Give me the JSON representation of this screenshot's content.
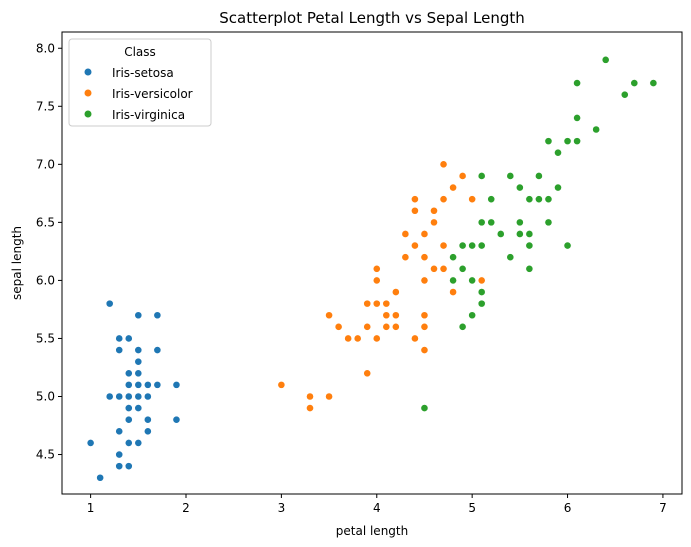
{
  "chart_data": {
    "type": "scatter",
    "title": "Scatterplot Petal Length vs Sepal Length",
    "xlabel": "petal length",
    "ylabel": "sepal length",
    "xlim": [
      0.7,
      7.2
    ],
    "ylim": [
      4.16,
      8.14
    ],
    "xticks": [
      1,
      2,
      3,
      4,
      5,
      6,
      7
    ],
    "yticks": [
      4.5,
      5.0,
      5.5,
      6.0,
      6.5,
      7.0,
      7.5,
      8.0
    ],
    "ytick_labels": [
      "4.5",
      "5.0",
      "5.5",
      "6.0",
      "6.5",
      "7.0",
      "7.5",
      "8.0"
    ],
    "grid": false,
    "legend": {
      "title": "Class",
      "position": "top-left"
    },
    "series": [
      {
        "name": "Iris-setosa",
        "color": "#1f77b4",
        "points": [
          [
            1.4,
            5.1
          ],
          [
            1.4,
            4.9
          ],
          [
            1.3,
            4.7
          ],
          [
            1.5,
            4.6
          ],
          [
            1.4,
            5.0
          ],
          [
            1.7,
            5.4
          ],
          [
            1.4,
            4.6
          ],
          [
            1.5,
            5.0
          ],
          [
            1.4,
            4.4
          ],
          [
            1.5,
            4.9
          ],
          [
            1.5,
            5.4
          ],
          [
            1.6,
            4.8
          ],
          [
            1.4,
            4.8
          ],
          [
            1.1,
            4.3
          ],
          [
            1.2,
            5.8
          ],
          [
            1.5,
            5.7
          ],
          [
            1.3,
            5.4
          ],
          [
            1.4,
            5.1
          ],
          [
            1.7,
            5.7
          ],
          [
            1.5,
            5.1
          ],
          [
            1.7,
            5.4
          ],
          [
            1.5,
            5.1
          ],
          [
            1.0,
            4.6
          ],
          [
            1.7,
            5.1
          ],
          [
            1.9,
            4.8
          ],
          [
            1.6,
            5.0
          ],
          [
            1.6,
            5.0
          ],
          [
            1.5,
            5.2
          ],
          [
            1.4,
            5.2
          ],
          [
            1.6,
            4.7
          ],
          [
            1.6,
            4.8
          ],
          [
            1.5,
            5.4
          ],
          [
            1.5,
            5.2
          ],
          [
            1.4,
            5.5
          ],
          [
            1.5,
            4.9
          ],
          [
            1.2,
            5.0
          ],
          [
            1.3,
            5.5
          ],
          [
            1.4,
            4.9
          ],
          [
            1.3,
            4.4
          ],
          [
            1.5,
            5.1
          ],
          [
            1.3,
            5.0
          ],
          [
            1.3,
            4.5
          ],
          [
            1.3,
            4.4
          ],
          [
            1.6,
            5.0
          ],
          [
            1.9,
            5.1
          ],
          [
            1.4,
            4.8
          ],
          [
            1.6,
            5.1
          ],
          [
            1.4,
            4.6
          ],
          [
            1.5,
            5.3
          ],
          [
            1.4,
            5.0
          ]
        ]
      },
      {
        "name": "Iris-versicolor",
        "color": "#ff7f0e",
        "points": [
          [
            4.7,
            7.0
          ],
          [
            4.5,
            6.4
          ],
          [
            4.9,
            6.9
          ],
          [
            4.0,
            5.5
          ],
          [
            4.6,
            6.5
          ],
          [
            4.5,
            5.7
          ],
          [
            4.7,
            6.3
          ],
          [
            3.3,
            4.9
          ],
          [
            4.6,
            6.6
          ],
          [
            3.9,
            5.2
          ],
          [
            3.5,
            5.0
          ],
          [
            4.2,
            5.9
          ],
          [
            4.0,
            6.0
          ],
          [
            4.7,
            6.1
          ],
          [
            3.6,
            5.6
          ],
          [
            4.4,
            6.7
          ],
          [
            4.5,
            5.6
          ],
          [
            4.1,
            5.8
          ],
          [
            4.5,
            6.2
          ],
          [
            3.9,
            5.6
          ],
          [
            4.8,
            5.9
          ],
          [
            4.0,
            6.1
          ],
          [
            4.9,
            6.3
          ],
          [
            4.7,
            6.1
          ],
          [
            4.3,
            6.4
          ],
          [
            4.4,
            6.6
          ],
          [
            4.8,
            6.8
          ],
          [
            5.0,
            6.7
          ],
          [
            4.5,
            6.0
          ],
          [
            3.5,
            5.7
          ],
          [
            3.8,
            5.5
          ],
          [
            3.7,
            5.5
          ],
          [
            3.9,
            5.8
          ],
          [
            5.1,
            6.0
          ],
          [
            4.5,
            5.4
          ],
          [
            4.5,
            6.0
          ],
          [
            4.7,
            6.7
          ],
          [
            4.4,
            6.3
          ],
          [
            4.1,
            5.6
          ],
          [
            4.0,
            5.5
          ],
          [
            4.4,
            5.5
          ],
          [
            4.6,
            6.1
          ],
          [
            4.0,
            5.8
          ],
          [
            3.3,
            5.0
          ],
          [
            4.2,
            5.6
          ],
          [
            4.2,
            5.7
          ],
          [
            4.2,
            5.7
          ],
          [
            4.3,
            6.2
          ],
          [
            3.0,
            5.1
          ],
          [
            4.1,
            5.7
          ]
        ]
      },
      {
        "name": "Iris-virginica",
        "color": "#2ca02c",
        "points": [
          [
            6.0,
            6.3
          ],
          [
            5.1,
            5.8
          ],
          [
            5.9,
            7.1
          ],
          [
            5.6,
            6.3
          ],
          [
            5.8,
            6.5
          ],
          [
            6.6,
            7.6
          ],
          [
            4.5,
            4.9
          ],
          [
            6.3,
            7.3
          ],
          [
            5.8,
            6.7
          ],
          [
            6.1,
            7.2
          ],
          [
            5.1,
            6.5
          ],
          [
            5.3,
            6.4
          ],
          [
            5.5,
            6.8
          ],
          [
            5.0,
            5.7
          ],
          [
            5.1,
            5.8
          ],
          [
            5.3,
            6.4
          ],
          [
            5.5,
            6.5
          ],
          [
            6.7,
            7.7
          ],
          [
            6.9,
            7.7
          ],
          [
            5.0,
            6.0
          ],
          [
            5.7,
            6.9
          ],
          [
            4.9,
            5.6
          ],
          [
            6.7,
            7.7
          ],
          [
            4.9,
            6.3
          ],
          [
            5.7,
            6.7
          ],
          [
            6.0,
            7.2
          ],
          [
            4.8,
            6.2
          ],
          [
            4.9,
            6.1
          ],
          [
            5.6,
            6.4
          ],
          [
            5.8,
            7.2
          ],
          [
            6.1,
            7.4
          ],
          [
            6.4,
            7.9
          ],
          [
            5.6,
            6.4
          ],
          [
            5.1,
            6.3
          ],
          [
            5.6,
            6.1
          ],
          [
            6.1,
            7.7
          ],
          [
            5.6,
            6.3
          ],
          [
            5.5,
            6.4
          ],
          [
            4.8,
            6.0
          ],
          [
            5.4,
            6.9
          ],
          [
            5.6,
            6.7
          ],
          [
            5.1,
            6.9
          ],
          [
            5.1,
            5.8
          ],
          [
            5.9,
            6.8
          ],
          [
            5.7,
            6.7
          ],
          [
            5.2,
            6.7
          ],
          [
            5.0,
            6.3
          ],
          [
            5.2,
            6.5
          ],
          [
            5.4,
            6.2
          ],
          [
            5.1,
            5.9
          ]
        ]
      }
    ]
  }
}
